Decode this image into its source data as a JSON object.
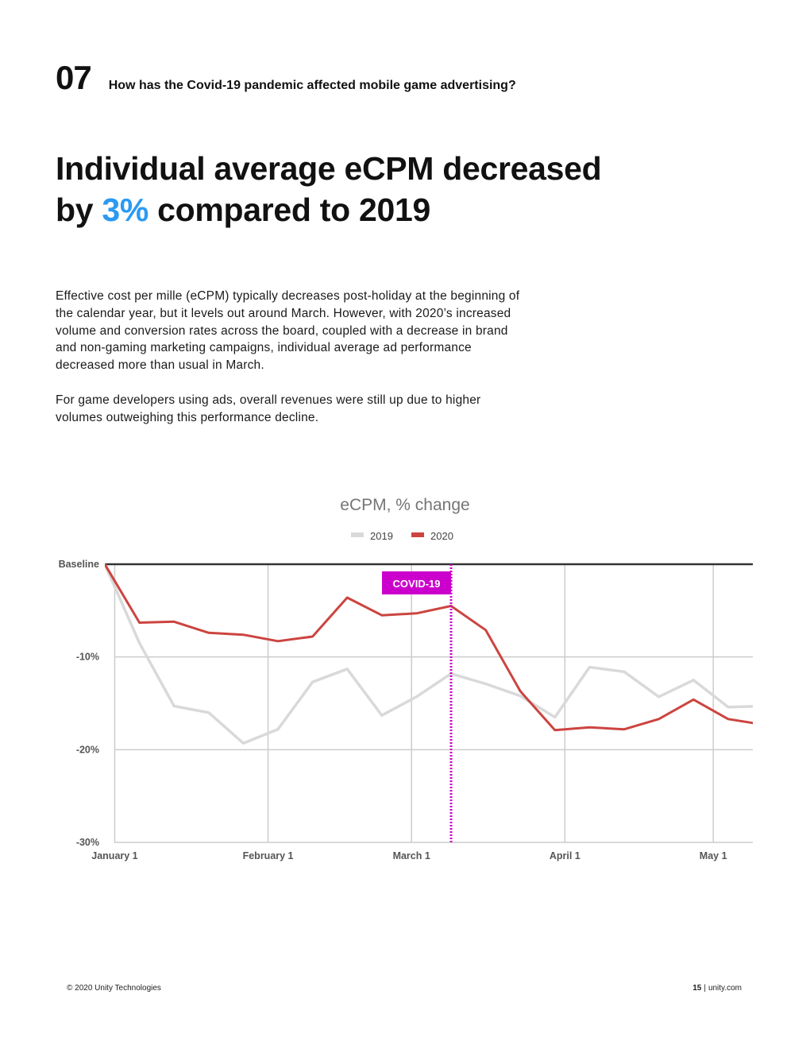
{
  "section": {
    "number": "07",
    "title": "How has the Covid-19 pandemic affected mobile game advertising?"
  },
  "headline": {
    "line1": "Individual average eCPM decreased",
    "line2_prefix": "by ",
    "line2_highlight": "3%",
    "line2_suffix": " compared to 2019"
  },
  "body": {
    "paragraph1": "Effective cost per mille (eCPM) typically decreases post-holiday at the beginning of the calendar year, but it levels out around March. However, with 2020’s increased volume and conversion rates across the board, coupled with a decrease in brand and non-gaming marketing campaigns, individual average ad performance decreased more than usual in March.",
    "paragraph2": "For game developers using ads, overall revenues were still up due to higher volumes outweighing this performance decline."
  },
  "chart_data": {
    "type": "line",
    "title": "eCPM, % change",
    "y_tick_labels": [
      "Baseline",
      "-10%",
      "-20%",
      "-30%"
    ],
    "y_ticks": [
      0,
      -10,
      -20,
      -30
    ],
    "ylim": [
      -30,
      0
    ],
    "x_tick_labels": [
      "January 1",
      "February 1",
      "March 1",
      "April 1",
      "May 1"
    ],
    "x_tick_days": [
      0,
      31,
      60,
      91,
      121
    ],
    "xlim": [
      -2,
      129
    ],
    "x_unit": "days from January 1",
    "legend_position": "top-center",
    "grid": true,
    "series": [
      {
        "name": "2019",
        "color": "#d9d9d9",
        "x": [
          -2,
          5,
          12,
          19,
          26,
          33,
          40,
          47,
          54,
          61,
          68,
          75,
          82,
          89,
          96,
          103,
          110,
          117,
          124,
          131
        ],
        "y": [
          0,
          -8.5,
          -15.3,
          -16.0,
          -19.3,
          -17.8,
          -12.7,
          -11.3,
          -16.3,
          -14.3,
          -11.8,
          -12.9,
          -14.2,
          -16.5,
          -11.1,
          -11.6,
          -14.3,
          -12.5,
          -15.4,
          -15.3
        ]
      },
      {
        "name": "2020",
        "color": "#cc4440",
        "x": [
          -2,
          5,
          12,
          19,
          26,
          33,
          40,
          47,
          54,
          61,
          68,
          75,
          82,
          89,
          96,
          103,
          110,
          117,
          124,
          131
        ],
        "y": [
          0,
          -6.3,
          -6.2,
          -7.4,
          -7.6,
          -8.3,
          -7.8,
          -3.6,
          -5.5,
          -5.3,
          -4.5,
          -7.1,
          -13.7,
          -17.9,
          -17.6,
          -17.8,
          -16.7,
          -14.6,
          -16.7,
          -17.3
        ]
      }
    ],
    "annotation": {
      "label": "COVID-19",
      "x": 68,
      "color": "#cc00cc"
    }
  },
  "footer": {
    "copyright": "© 2020 Unity Technologies",
    "page_number": "15",
    "site": "unity.com"
  }
}
